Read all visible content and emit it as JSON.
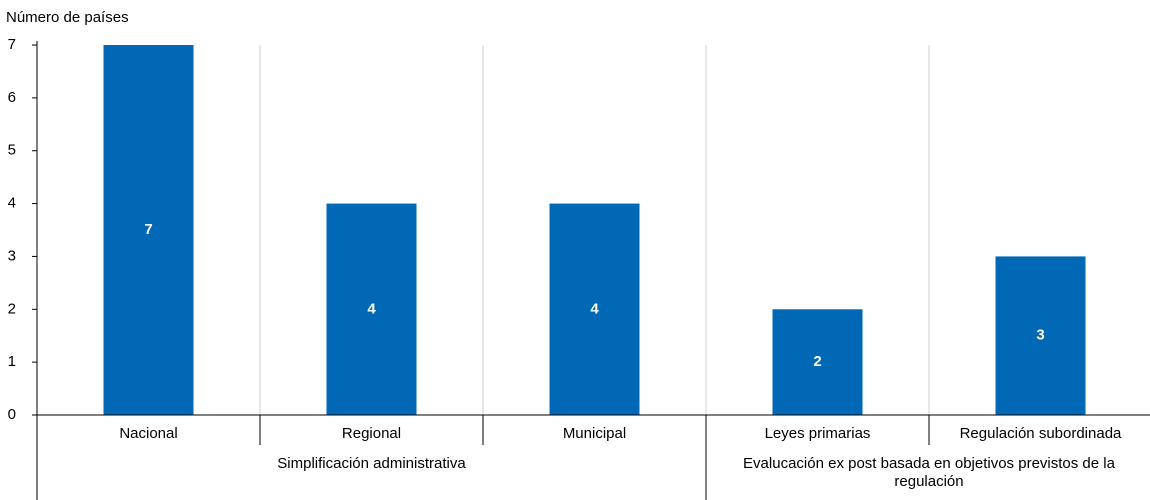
{
  "chart_data": {
    "type": "bar",
    "y_label": "Número de países",
    "categories": [
      "Nacional",
      "Regional",
      "Municipal",
      "Leyes primarias",
      "Regulación subordinada"
    ],
    "values": [
      7,
      4,
      4,
      2,
      3
    ],
    "color": "#0068b4",
    "groups": [
      {
        "name": "Simplificación administrativa",
        "span": 3
      },
      {
        "name": "Evalucación ex post basada en objetivos previstos de la regulación",
        "span": 2
      }
    ],
    "ylim": [
      0,
      7
    ],
    "yticks": [
      0,
      1,
      2,
      3,
      4,
      5,
      6,
      7
    ]
  }
}
